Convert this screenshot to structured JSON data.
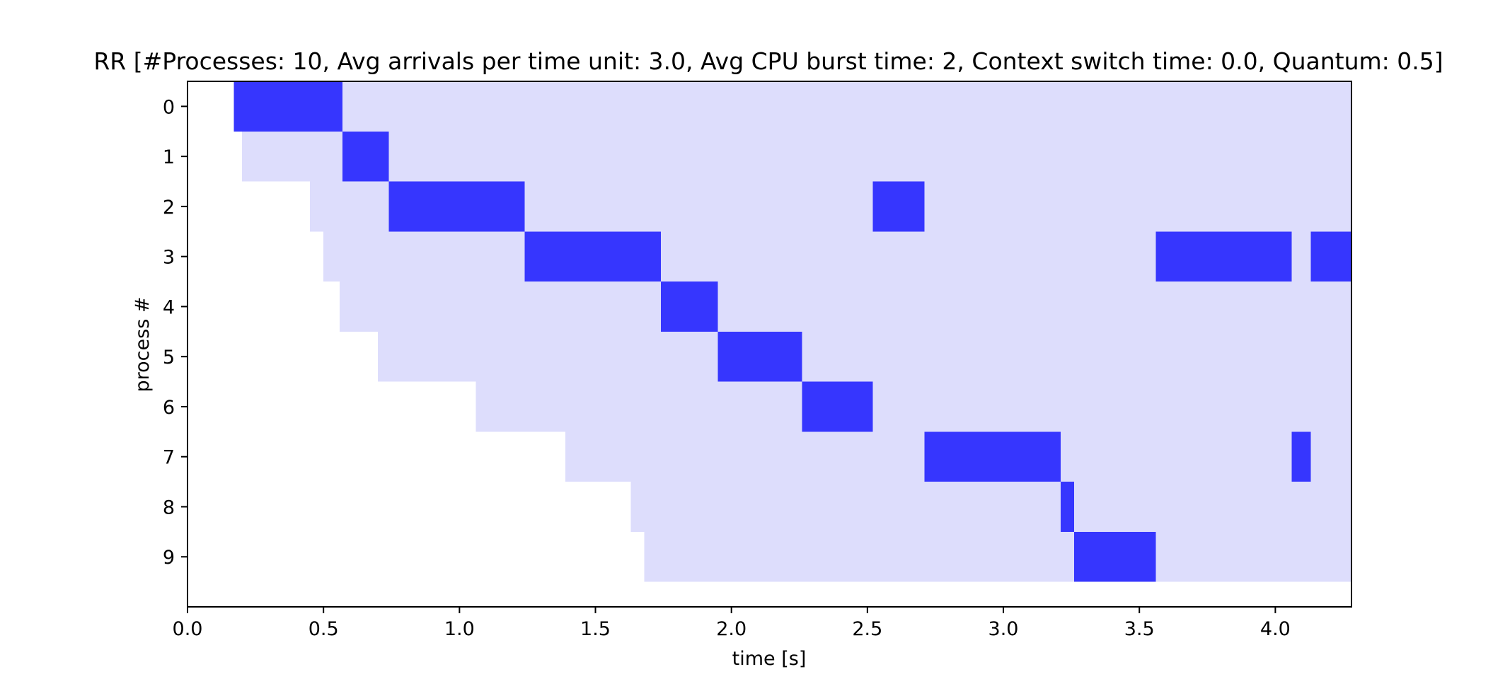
{
  "chart_data": {
    "type": "bar",
    "subtype": "gantt",
    "title": "RR [#Processes: 10, Avg arrivals per time unit: 3.0, Avg CPU burst time: 2, Context switch time: 0.0, Quantum: 0.5]",
    "xlabel": "time [s]",
    "ylabel": "process #",
    "xlim": [
      0.0,
      4.28
    ],
    "ylim": [
      -0.5,
      10.0
    ],
    "y_inverted": true,
    "grid": false,
    "xticks": [
      "0.0",
      "0.5",
      "1.0",
      "1.5",
      "2.0",
      "2.5",
      "3.0",
      "3.5",
      "4.0"
    ],
    "yticks": [
      "0",
      "1",
      "2",
      "3",
      "4",
      "5",
      "6",
      "7",
      "8",
      "9"
    ],
    "colors": {
      "waiting": "#ddddfc",
      "running": "#3636fe"
    },
    "series": [
      {
        "role": "waiting",
        "bars": [
          {
            "process": 0,
            "start": 0.17,
            "end": 4.28
          },
          {
            "process": 1,
            "start": 0.2,
            "end": 4.28
          },
          {
            "process": 2,
            "start": 0.45,
            "end": 4.28
          },
          {
            "process": 3,
            "start": 0.5,
            "end": 4.28
          },
          {
            "process": 4,
            "start": 0.56,
            "end": 4.28
          },
          {
            "process": 5,
            "start": 0.7,
            "end": 4.28
          },
          {
            "process": 6,
            "start": 1.06,
            "end": 4.28
          },
          {
            "process": 7,
            "start": 1.39,
            "end": 4.28
          },
          {
            "process": 8,
            "start": 1.63,
            "end": 4.28
          },
          {
            "process": 9,
            "start": 1.68,
            "end": 4.28
          }
        ]
      },
      {
        "role": "running",
        "bars": [
          {
            "process": 0,
            "start": 0.17,
            "end": 0.57
          },
          {
            "process": 1,
            "start": 0.57,
            "end": 0.74
          },
          {
            "process": 2,
            "start": 0.74,
            "end": 1.24
          },
          {
            "process": 2,
            "start": 2.52,
            "end": 2.71
          },
          {
            "process": 3,
            "start": 1.24,
            "end": 1.74
          },
          {
            "process": 3,
            "start": 3.56,
            "end": 4.06
          },
          {
            "process": 3,
            "start": 4.13,
            "end": 4.28
          },
          {
            "process": 4,
            "start": 1.74,
            "end": 1.95
          },
          {
            "process": 5,
            "start": 1.95,
            "end": 2.26
          },
          {
            "process": 6,
            "start": 2.26,
            "end": 2.52
          },
          {
            "process": 7,
            "start": 2.71,
            "end": 3.21
          },
          {
            "process": 7,
            "start": 4.06,
            "end": 4.13
          },
          {
            "process": 8,
            "start": 3.21,
            "end": 3.26
          },
          {
            "process": 9,
            "start": 3.26,
            "end": 3.56
          }
        ]
      }
    ]
  }
}
